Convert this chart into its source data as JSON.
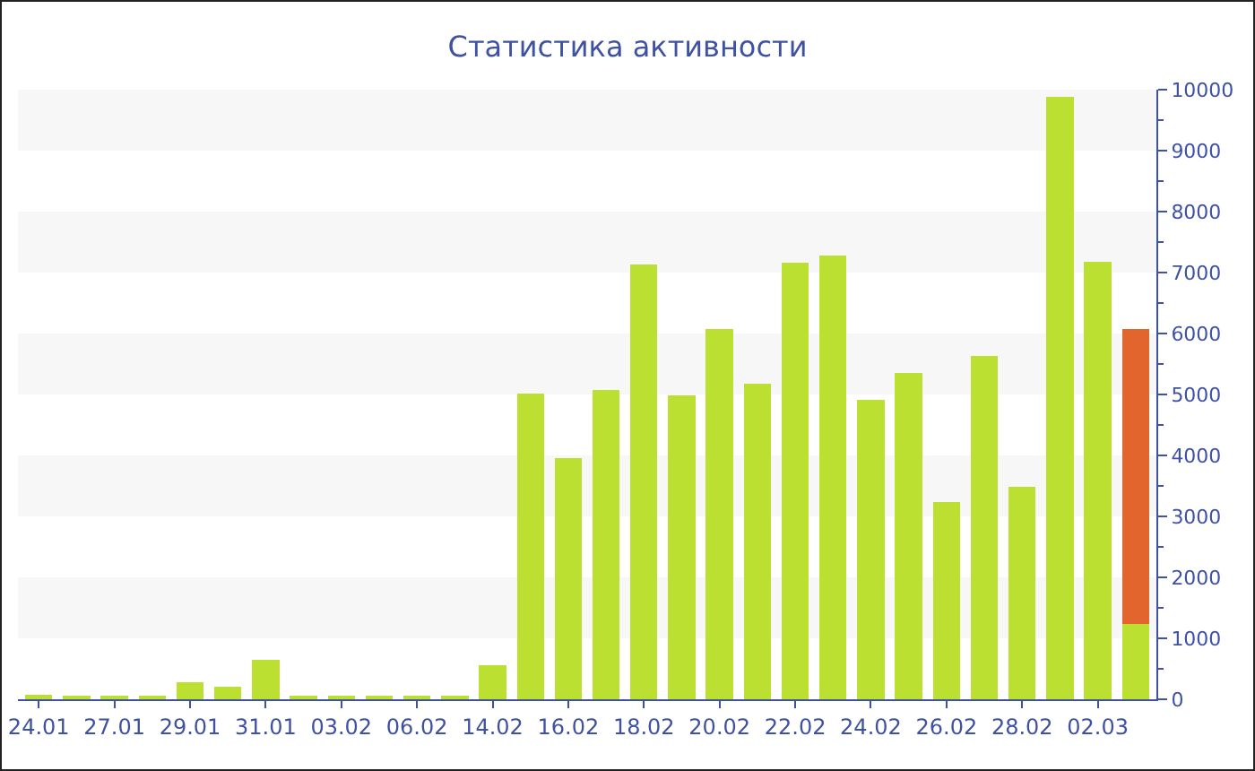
{
  "chart_data": {
    "type": "bar",
    "title": "Статистика активности",
    "categories": [
      "24.01",
      null,
      "27.01",
      null,
      "29.01",
      null,
      "31.01",
      null,
      "03.02",
      null,
      "06.02",
      null,
      "14.02",
      null,
      "16.02",
      null,
      "18.02",
      null,
      "20.02",
      null,
      "22.02",
      null,
      "24.02",
      null,
      "26.02",
      null,
      "28.02",
      null,
      "02.03",
      null
    ],
    "stacked": true,
    "series": [
      {
        "color": "#bce032",
        "values": [
          80,
          40,
          60,
          30,
          280,
          200,
          640,
          30,
          30,
          60,
          40,
          30,
          560,
          5020,
          3960,
          5070,
          7130,
          4980,
          6080,
          5170,
          7160,
          7280,
          4910,
          5350,
          3230,
          5630,
          3490,
          9880,
          7180,
          1230
        ]
      },
      {
        "color": "#e2652e",
        "values": [
          null,
          null,
          null,
          null,
          null,
          null,
          null,
          null,
          null,
          null,
          null,
          null,
          null,
          null,
          null,
          null,
          null,
          null,
          null,
          null,
          null,
          null,
          null,
          null,
          null,
          null,
          null,
          null,
          null,
          4850
        ]
      }
    ],
    "ylim": [
      0,
      10000
    ],
    "yticks": [
      0,
      1000,
      2000,
      3000,
      4000,
      5000,
      6000,
      7000,
      8000,
      9000,
      10000
    ],
    "bands": [
      {
        "axis": "y",
        "from": 1000,
        "to": 2000,
        "color": "#f7f7f7"
      },
      {
        "axis": "y",
        "from": 3000,
        "to": 4000,
        "color": "#f7f7f7"
      },
      {
        "axis": "y",
        "from": 5000,
        "to": 6000,
        "color": "#f7f7f7"
      },
      {
        "axis": "y",
        "from": 7000,
        "to": 8000,
        "color": "#f7f7f7"
      },
      {
        "axis": "y",
        "from": 9000,
        "to": 10000,
        "color": "#f7f7f7"
      }
    ]
  }
}
